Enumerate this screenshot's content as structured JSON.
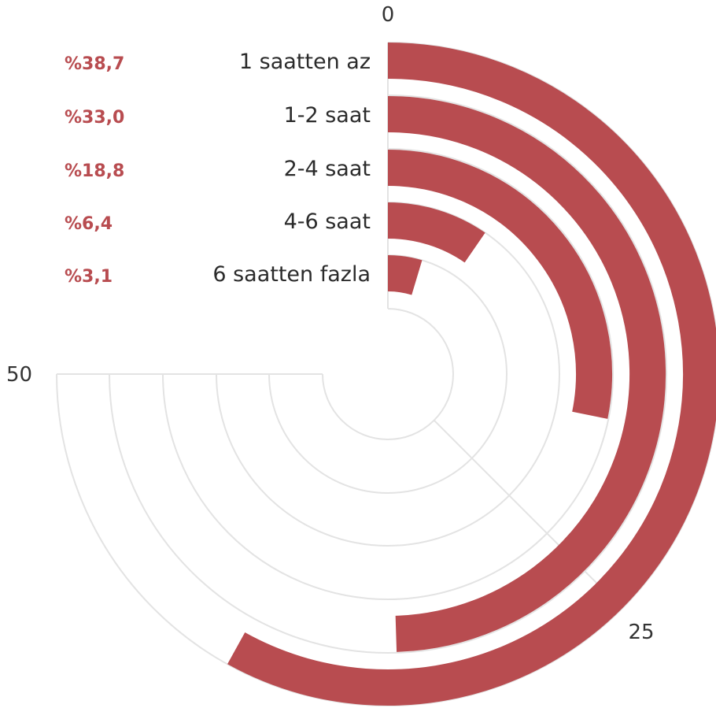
{
  "chart_data": {
    "type": "radial-bar",
    "title": "",
    "axis": {
      "min": 0,
      "max": 50,
      "ticks": [
        {
          "value": 0,
          "label": "0"
        },
        {
          "value": 25,
          "label": "25"
        },
        {
          "value": 50,
          "label": "50"
        }
      ]
    },
    "categories": [
      "1 saatten az",
      "1-2 saat",
      "2-4 saat",
      "4-6 saat",
      "6 saatten fazla"
    ],
    "values": [
      38.7,
      33.0,
      18.8,
      6.4,
      3.1
    ],
    "value_labels": [
      "%38,7",
      "%33,0",
      "%18,8",
      "%6,4",
      "%3,1"
    ],
    "grid": true,
    "colors": {
      "bar": "#b84c50",
      "grid": "#e3e3e3",
      "value_label": "#b84c50",
      "category_label": "#2b2b2b",
      "tick_label": "#333333"
    }
  }
}
